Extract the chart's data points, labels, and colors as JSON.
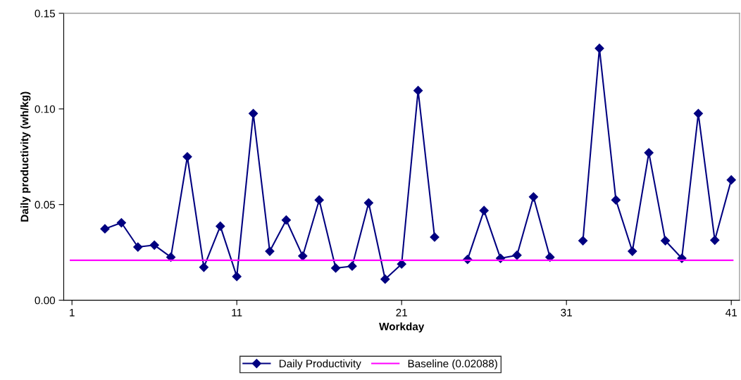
{
  "chart_data": {
    "type": "line",
    "xlabel": "Workday",
    "ylabel": "Daily productivity (wh/kg)",
    "x": [
      3,
      4,
      5,
      6,
      7,
      8,
      9,
      10,
      11,
      12,
      13,
      14,
      15,
      16,
      17,
      18,
      19,
      20,
      21,
      22,
      23,
      24,
      25,
      26,
      27,
      28,
      29,
      30,
      31,
      32,
      33,
      34,
      35,
      36,
      37,
      38,
      39,
      40,
      41
    ],
    "series": [
      {
        "name": "Daily Productivity",
        "color": "#000080",
        "values": [
          0.0373,
          0.0405,
          0.0278,
          0.0288,
          0.0225,
          0.075,
          0.0172,
          0.0387,
          0.0124,
          0.0976,
          0.0256,
          0.0419,
          0.0231,
          0.0524,
          0.0168,
          0.0178,
          0.0509,
          0.011,
          0.0189,
          0.1096,
          0.033,
          null,
          0.0213,
          0.0469,
          0.0219,
          0.0235,
          0.054,
          0.0225,
          null,
          0.0311,
          0.1317,
          0.0524,
          0.0256,
          0.0771,
          0.0311,
          0.0219,
          0.0976,
          0.0314,
          0.0629
        ]
      }
    ],
    "ref_lines": [
      {
        "axis": "y",
        "value": 0.02088,
        "label": "Baseline (0.02088)",
        "color": "#ff00ff",
        "line_style": "solid"
      }
    ],
    "xlim": [
      0.5,
      41.5
    ],
    "xticks": [
      1,
      11,
      21,
      31,
      41
    ],
    "ylim": [
      0,
      0.15
    ],
    "yticks": [
      {
        "value": 0,
        "label": "0.00"
      },
      {
        "value": 0.05,
        "label": "0.05"
      },
      {
        "value": 0.1,
        "label": "0.10"
      },
      {
        "value": 0.15,
        "label": "0.15"
      }
    ],
    "marker": "diamond",
    "line_style": "solid",
    "grid": false,
    "legend": "bottom"
  }
}
